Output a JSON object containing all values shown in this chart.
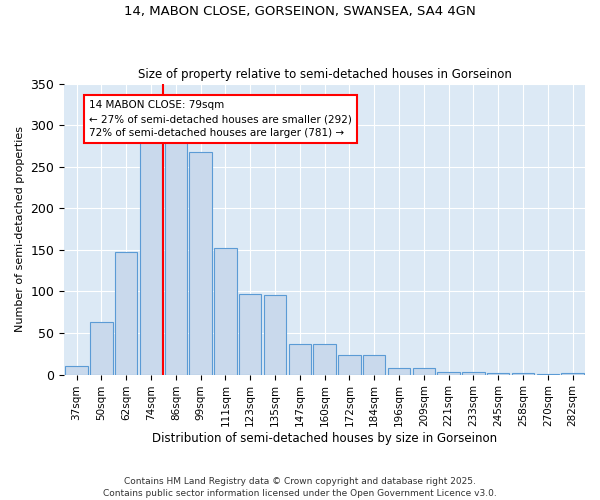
{
  "title": "14, MABON CLOSE, GORSEINON, SWANSEA, SA4 4GN",
  "subtitle": "Size of property relative to semi-detached houses in Gorseinon",
  "xlabel": "Distribution of semi-detached houses by size in Gorseinon",
  "ylabel": "Number of semi-detached properties",
  "categories": [
    "37sqm",
    "50sqm",
    "62sqm",
    "74sqm",
    "86sqm",
    "99sqm",
    "111sqm",
    "123sqm",
    "135sqm",
    "147sqm",
    "160sqm",
    "172sqm",
    "184sqm",
    "196sqm",
    "209sqm",
    "221sqm",
    "233sqm",
    "245sqm",
    "258sqm",
    "270sqm",
    "282sqm"
  ],
  "values": [
    10,
    63,
    148,
    283,
    280,
    268,
    152,
    97,
    96,
    37,
    37,
    23,
    23,
    8,
    8,
    3,
    3,
    2,
    2,
    1,
    2
  ],
  "bar_color": "#c9d9ec",
  "bar_edge_color": "#5b9bd5",
  "red_line_x": 3.5,
  "annotation_text": "14 MABON CLOSE: 79sqm\n← 27% of semi-detached houses are smaller (292)\n72% of semi-detached houses are larger (781) →",
  "ylim": [
    0,
    350
  ],
  "yticks": [
    0,
    50,
    100,
    150,
    200,
    250,
    300,
    350
  ],
  "footer": "Contains HM Land Registry data © Crown copyright and database right 2025.\nContains public sector information licensed under the Open Government Licence v3.0.",
  "bg_color": "#dce9f5",
  "title_fontsize": 9.5,
  "subtitle_fontsize": 8.5,
  "ylabel_fontsize": 8,
  "xlabel_fontsize": 8.5,
  "tick_fontsize": 7.5,
  "annotation_fontsize": 7.5,
  "footer_fontsize": 6.5
}
